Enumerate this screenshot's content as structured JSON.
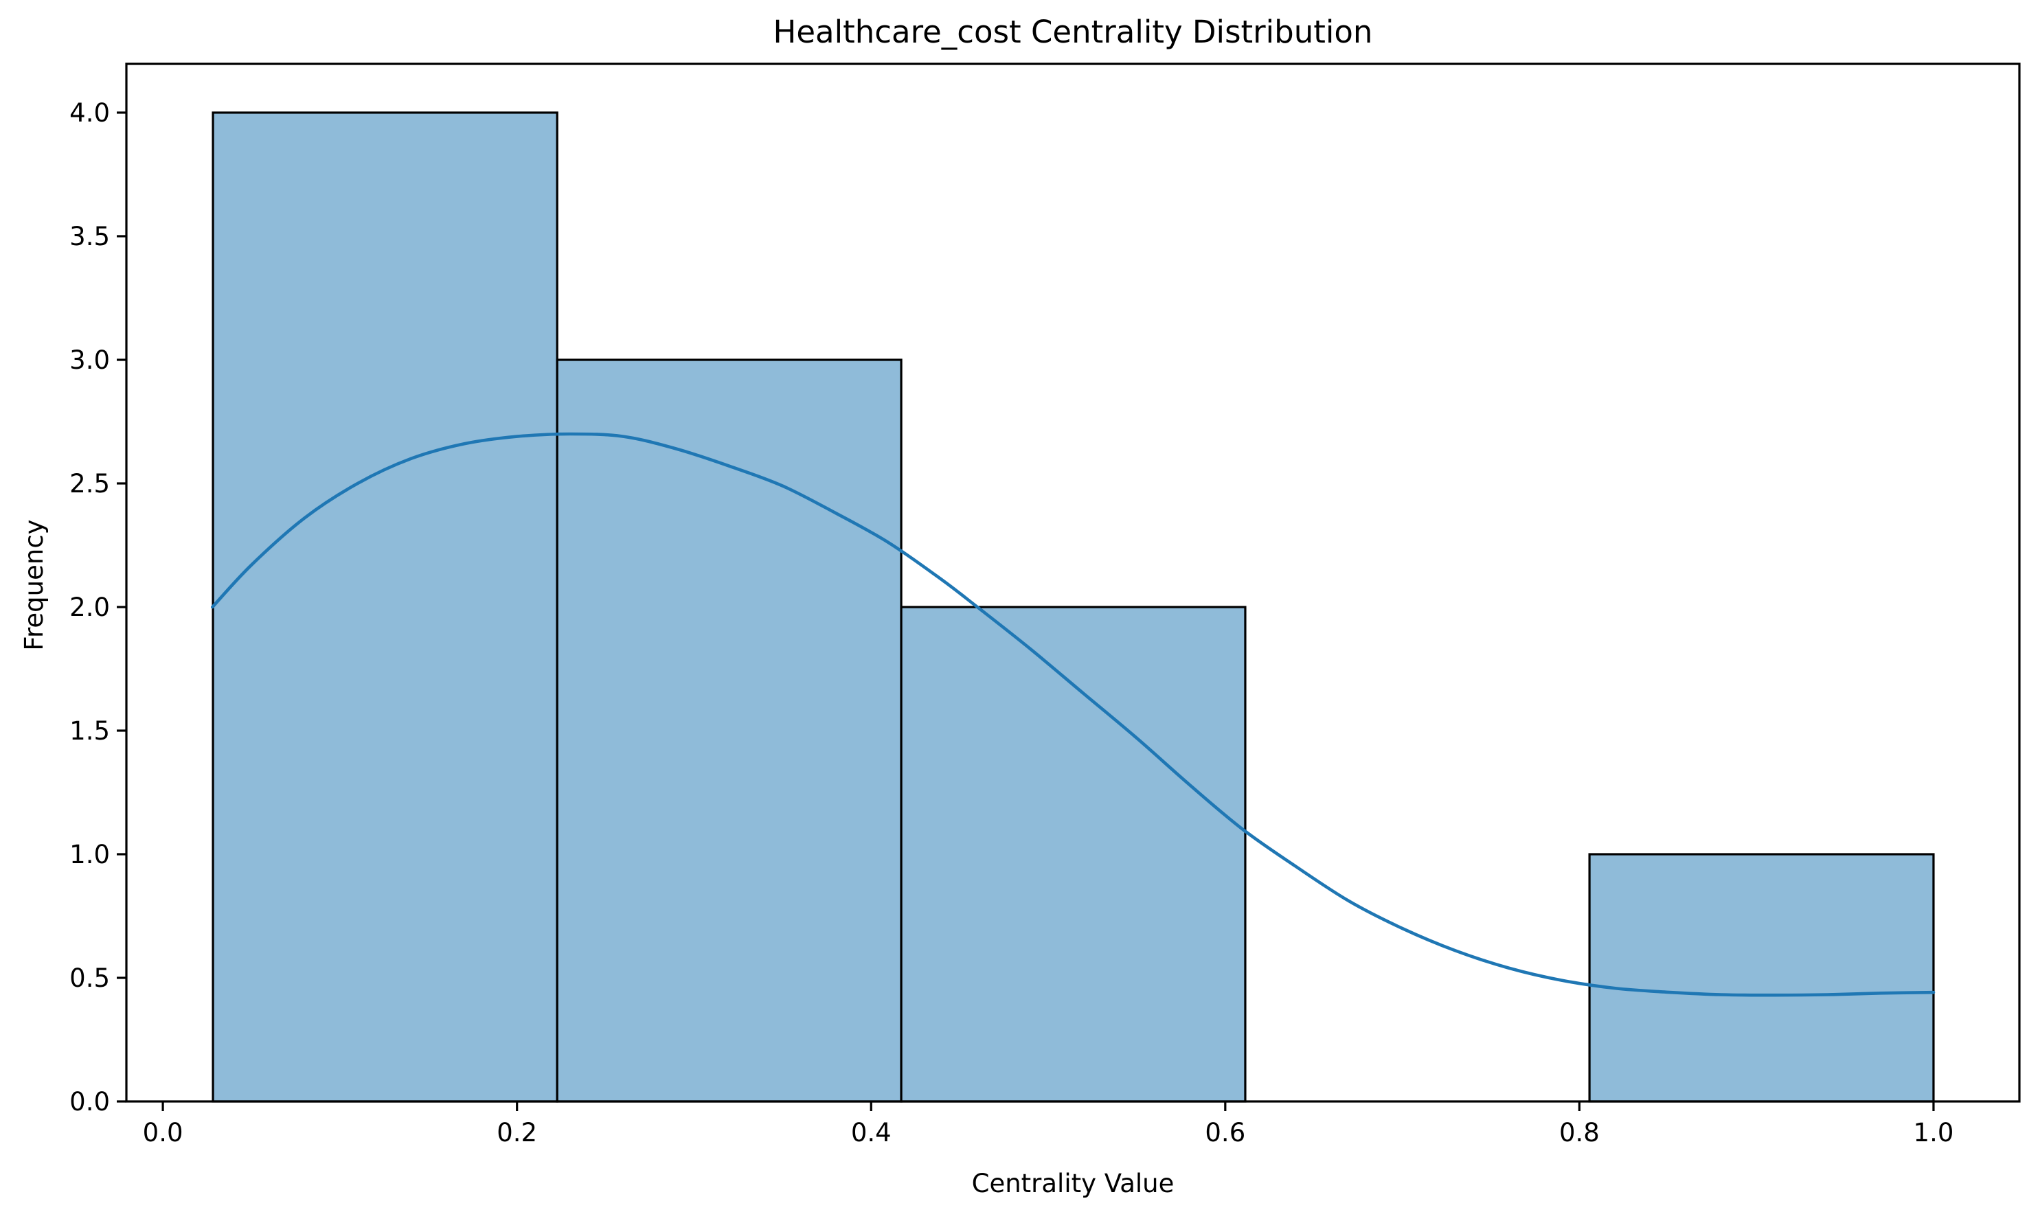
{
  "chart_data": {
    "type": "histogram",
    "title": "Healthcare_cost Centrality Distribution",
    "xlabel": "Centrality Value",
    "ylabel": "Frequency",
    "xlim": [
      -0.0206,
      1.0485
    ],
    "ylim": [
      0,
      4.1972
    ],
    "grid": false,
    "legend": null,
    "bars": {
      "bin_edges": [
        0.0283,
        0.2227,
        0.417,
        0.6113,
        0.8057,
        1.0
      ],
      "counts": [
        4,
        3,
        2,
        0,
        1
      ]
    },
    "kde": {
      "x": [
        0.028,
        0.05,
        0.08,
        0.11,
        0.14,
        0.17,
        0.2,
        0.23,
        0.26,
        0.29,
        0.32,
        0.35,
        0.38,
        0.41,
        0.44,
        0.46,
        0.49,
        0.52,
        0.55,
        0.58,
        0.61,
        0.64,
        0.67,
        0.7,
        0.73,
        0.76,
        0.79,
        0.82,
        0.85,
        0.88,
        0.91,
        0.94,
        0.97,
        1.0
      ],
      "y": [
        2.0,
        2.17,
        2.36,
        2.5,
        2.6,
        2.66,
        2.69,
        2.7,
        2.69,
        2.64,
        2.57,
        2.49,
        2.38,
        2.26,
        2.11,
        2.0,
        1.83,
        1.65,
        1.47,
        1.28,
        1.1,
        0.95,
        0.81,
        0.7,
        0.61,
        0.54,
        0.49,
        0.458,
        0.442,
        0.432,
        0.43,
        0.432,
        0.438,
        0.441
      ]
    },
    "xticks": {
      "values": [
        0.0,
        0.2,
        0.4,
        0.6,
        0.8,
        1.0
      ],
      "labels": [
        "0.0",
        "0.2",
        "0.4",
        "0.6",
        "0.8",
        "1.0"
      ]
    },
    "yticks": {
      "values": [
        0.0,
        0.5,
        1.0,
        1.5,
        2.0,
        2.5,
        3.0,
        3.5,
        4.0
      ],
      "labels": [
        "0.0",
        "0.5",
        "1.0",
        "1.5",
        "2.0",
        "2.5",
        "3.0",
        "3.5",
        "4.0"
      ]
    },
    "colors": {
      "bar_fill": "#8FBBD9",
      "bar_edge": "#000000",
      "kde_line": "#1F77B4",
      "axis": "#000000",
      "text": "#000000",
      "background": "#FFFFFF"
    }
  }
}
